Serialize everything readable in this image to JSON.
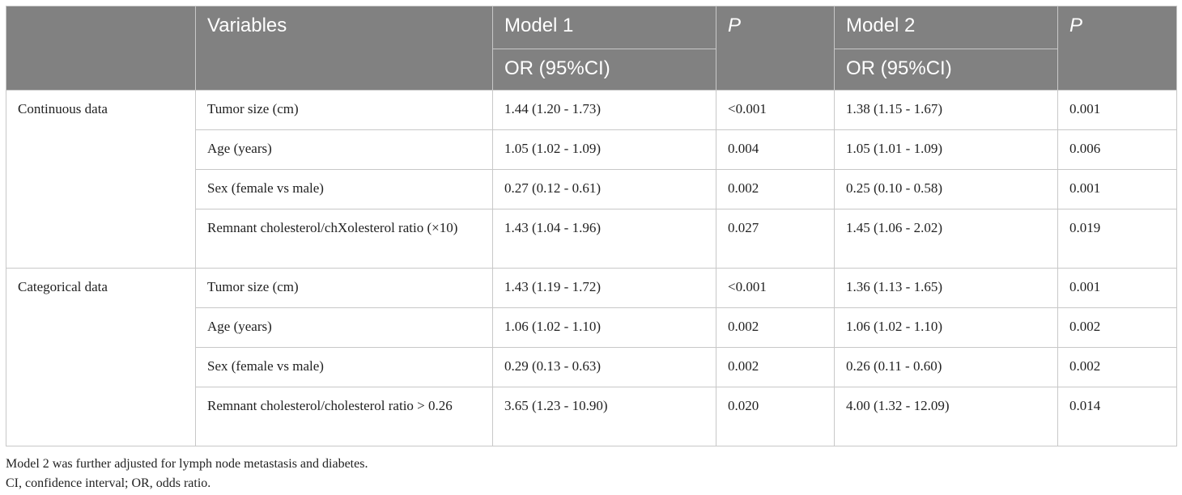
{
  "header": {
    "variables": "Variables",
    "model1": "Model 1",
    "model2": "Model 2",
    "p": "P",
    "or_ci": "OR (95%CI)"
  },
  "groups": [
    {
      "label": "Continuous data",
      "rows": [
        {
          "variable": "Tumor size (cm)",
          "m1": "1.44 (1.20 - 1.73)",
          "p1": "<0.001",
          "m2": "1.38 (1.15 - 1.67)",
          "p2": "0.001"
        },
        {
          "variable": "Age (years)",
          "m1": "1.05 (1.02 - 1.09)",
          "p1": "0.004",
          "m2": "1.05 (1.01 - 1.09)",
          "p2": "0.006"
        },
        {
          "variable": "Sex (female vs male)",
          "m1": "0.27 (0.12 - 0.61)",
          "p1": "0.002",
          "m2": "0.25 (0.10 - 0.58)",
          "p2": "0.001"
        },
        {
          "variable": "Remnant cholesterol/chXolesterol ratio (×10)",
          "m1": "1.43 (1.04 - 1.96)",
          "p1": "0.027",
          "m2": "1.45 (1.06 - 2.02)",
          "p2": "0.019"
        }
      ]
    },
    {
      "label": "Categorical data",
      "rows": [
        {
          "variable": "Tumor size (cm)",
          "m1": "1.43 (1.19 - 1.72)",
          "p1": "<0.001",
          "m2": "1.36 (1.13 - 1.65)",
          "p2": "0.001"
        },
        {
          "variable": "Age (years)",
          "m1": "1.06 (1.02 - 1.10)",
          "p1": "0.002",
          "m2": "1.06 (1.02 - 1.10)",
          "p2": "0.002"
        },
        {
          "variable": "Sex (female vs male)",
          "m1": "0.29 (0.13 - 0.63)",
          "p1": "0.002",
          "m2": "0.26 (0.11 - 0.60)",
          "p2": "0.002"
        },
        {
          "variable": "Remnant cholesterol/cholesterol ratio > 0.26",
          "m1": "3.65 (1.23 - 10.90)",
          "p1": "0.020",
          "m2": "4.00 (1.32 - 12.09)",
          "p2": "0.014"
        }
      ]
    }
  ],
  "notes": [
    "Model 2 was further adjusted for lymph node metastasis and diabetes.",
    "CI, confidence interval; OR, odds ratio."
  ],
  "colors": {
    "header_bg": "#818181",
    "header_text": "#ffffff",
    "border": "#c8c8c8"
  }
}
